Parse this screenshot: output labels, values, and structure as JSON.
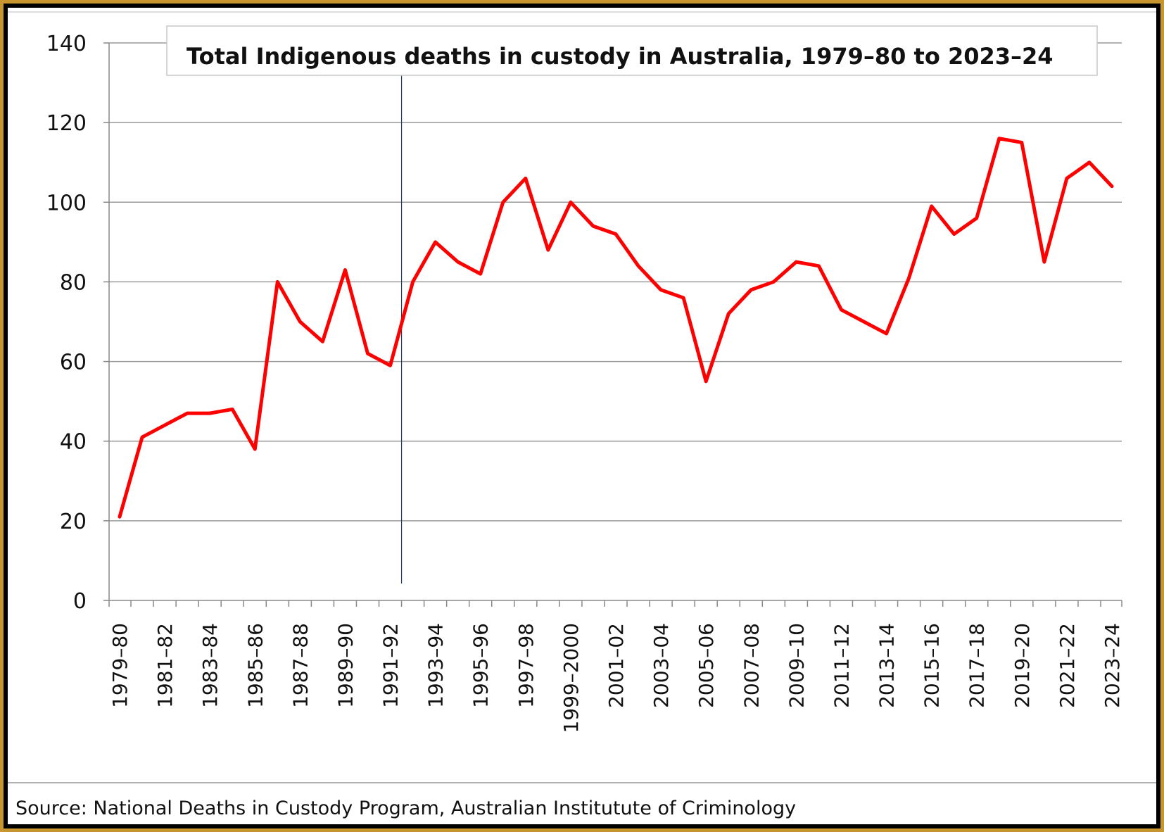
{
  "chart_data": {
    "type": "line",
    "title": "Total Indigenous deaths in custody in Australia,  1979–80 to 2023–24",
    "source": "Source: National Deaths in Custody Program, Australian Institutute of Criminology",
    "xlabel": "",
    "ylabel": "",
    "ylim": [
      0,
      140
    ],
    "yticks": [
      0,
      20,
      40,
      60,
      80,
      100,
      120,
      140
    ],
    "grid": true,
    "line_color": "#ff0000",
    "categories": [
      "1979–80",
      "1980–81",
      "1981–82",
      "1982–83",
      "1983–84",
      "1984–85",
      "1985–86",
      "1986–87",
      "1987–88",
      "1988–89",
      "1989–90",
      "1990–91",
      "1991–92",
      "1992–93",
      "1993–94",
      "1994–95",
      "1995–96",
      "1996–97",
      "1997–98",
      "1998–99",
      "1999–2000",
      "2000–01",
      "2001–02",
      "2002–03",
      "2003–04",
      "2004–05",
      "2005–06",
      "2006–07",
      "2007–08",
      "2008–09",
      "2009–10",
      "2010–11",
      "2011–12",
      "2012–13",
      "2013–14",
      "2014–15",
      "2015–16",
      "2016–17",
      "2017–18",
      "2018–19",
      "2019–20",
      "2020–21",
      "2021–22",
      "2022–23",
      "2023–24"
    ],
    "tick_labels": [
      "1979–80",
      "1981–82",
      "1983–84",
      "1985–86",
      "1987–88",
      "1989–90",
      "1991–92",
      "1993–94",
      "1995–96",
      "1997–98",
      "1999–2000",
      "2001–02",
      "2003–04",
      "2005–06",
      "2007–08",
      "2009–10",
      "2011–12",
      "2013–14",
      "2015–16",
      "2017–18",
      "2019–20",
      "2021–22",
      "2023–24"
    ],
    "marker_category": "1991–92",
    "series": [
      {
        "values": [
          21,
          41,
          44,
          47,
          47,
          48,
          38,
          80,
          70,
          65,
          83,
          62,
          59,
          80,
          90,
          85,
          82,
          100,
          106,
          88,
          100,
          94,
          92,
          84,
          78,
          76,
          55,
          72,
          78,
          80,
          85,
          84,
          73,
          70,
          67,
          81,
          99,
          92,
          96,
          116,
          115,
          85,
          106,
          110,
          104
        ]
      }
    ]
  }
}
